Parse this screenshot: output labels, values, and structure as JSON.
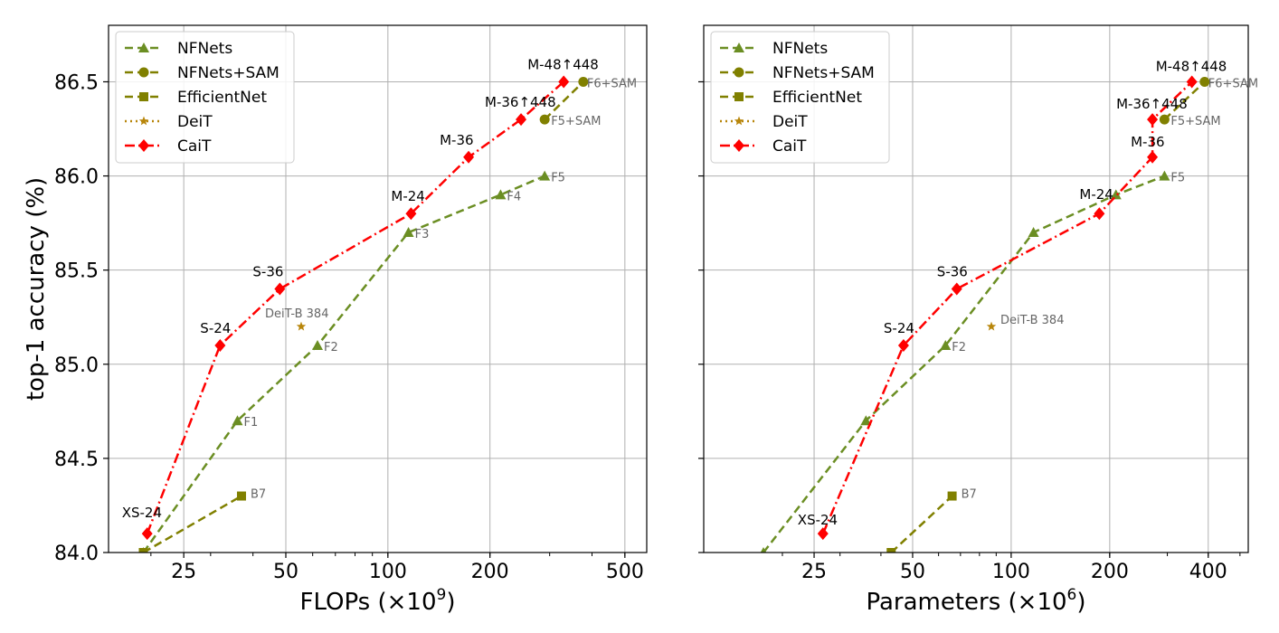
{
  "chart_data": [
    {
      "type": "line",
      "xscale": "log",
      "xlim": [
        15,
        580
      ],
      "ylim": [
        84.0,
        86.8
      ],
      "xlabel": "FLOPs (×10",
      "xlabel_sup": "9",
      "xlabel_tail": ")",
      "ylabel": "top-1 accuracy (%)",
      "xticks": [
        {
          "value": 25,
          "label": "25"
        },
        {
          "value": 50,
          "label": "50"
        },
        {
          "value": 100,
          "label": "100"
        },
        {
          "value": 200,
          "label": "200"
        },
        {
          "value": 500,
          "label": "500"
        }
      ],
      "yticks": [
        {
          "value": 84.0,
          "label": "84.0"
        },
        {
          "value": 84.5,
          "label": "84.5"
        },
        {
          "value": 85.0,
          "label": "85.0"
        },
        {
          "value": 85.5,
          "label": "85.5"
        },
        {
          "value": 86.0,
          "label": "86.0"
        },
        {
          "value": 86.5,
          "label": "86.5"
        }
      ],
      "grid": true,
      "legend_position": "top-left",
      "series": [
        {
          "name": "NFNets",
          "color": "#6b8e23",
          "linestyle": "dashed",
          "marker": "triangle",
          "points": [
            {
              "x": 19,
              "y": 84.0,
              "label": ""
            },
            {
              "x": 36,
              "y": 84.7,
              "label": "F1"
            },
            {
              "x": 62,
              "y": 85.1,
              "label": "F2"
            },
            {
              "x": 115,
              "y": 85.7,
              "label": "F3"
            },
            {
              "x": 215,
              "y": 85.9,
              "label": "F4"
            },
            {
              "x": 290,
              "y": 86.0,
              "label": "F5"
            }
          ]
        },
        {
          "name": "NFNets+SAM",
          "color": "#808000",
          "linestyle": "dashed",
          "marker": "circle",
          "points": [
            {
              "x": 290,
              "y": 86.3,
              "label": "F5+SAM"
            },
            {
              "x": 377,
              "y": 86.5,
              "label": "F6+SAM"
            }
          ]
        },
        {
          "name": "EfficientNet",
          "color": "#808000",
          "linestyle": "dashed",
          "marker": "square",
          "points": [
            {
              "x": 19,
              "y": 84.0,
              "label": ""
            },
            {
              "x": 37,
              "y": 84.3,
              "label": "B7"
            }
          ]
        },
        {
          "name": "DeiT",
          "color": "#b8860b",
          "linestyle": "dotted",
          "marker": "star",
          "points": [
            {
              "x": 55.5,
              "y": 85.2,
              "label": "DeiT-B 384"
            }
          ]
        },
        {
          "name": "CaiT",
          "color": "#ff0000",
          "linestyle": "dashdot",
          "marker": "diamond",
          "points": [
            {
              "x": 19.5,
              "y": 84.1,
              "label": "XS-24"
            },
            {
              "x": 32,
              "y": 85.1,
              "label": "S-24"
            },
            {
              "x": 48,
              "y": 85.4,
              "label": "S-36"
            },
            {
              "x": 117,
              "y": 85.8,
              "label": "M-24"
            },
            {
              "x": 173,
              "y": 86.1,
              "label": "M-36"
            },
            {
              "x": 247,
              "y": 86.3,
              "label": "M-36↑448"
            },
            {
              "x": 330,
              "y": 86.5,
              "label": "M-48↑448"
            }
          ]
        }
      ]
    },
    {
      "type": "line",
      "xscale": "log",
      "xlim": [
        11.5,
        530
      ],
      "ylim": [
        84.0,
        86.8
      ],
      "xlabel": "Parameters (×10",
      "xlabel_sup": "6",
      "xlabel_tail": ")",
      "ylabel": "",
      "xticks": [
        {
          "value": 25,
          "label": "25"
        },
        {
          "value": 50,
          "label": "50"
        },
        {
          "value": 100,
          "label": "100"
        },
        {
          "value": 200,
          "label": "200"
        },
        {
          "value": 400,
          "label": "400"
        }
      ],
      "yticks": [
        {
          "value": 84.0,
          "label": ""
        },
        {
          "value": 84.5,
          "label": ""
        },
        {
          "value": 85.0,
          "label": ""
        },
        {
          "value": 85.5,
          "label": ""
        },
        {
          "value": 86.0,
          "label": ""
        },
        {
          "value": 86.5,
          "label": ""
        }
      ],
      "grid": true,
      "legend_position": "top-left",
      "series": [
        {
          "name": "NFNets",
          "color": "#6b8e23",
          "linestyle": "dashed",
          "marker": "triangle",
          "points": [
            {
              "x": 17.5,
              "y": 84.0,
              "label": ""
            },
            {
              "x": 36,
              "y": 84.7,
              "label": ""
            },
            {
              "x": 63,
              "y": 85.1,
              "label": "F2"
            },
            {
              "x": 117,
              "y": 85.7,
              "label": ""
            },
            {
              "x": 209,
              "y": 85.9,
              "label": ""
            },
            {
              "x": 294,
              "y": 86.0,
              "label": "F5"
            }
          ]
        },
        {
          "name": "NFNets+SAM",
          "color": "#808000",
          "linestyle": "dashed",
          "marker": "circle",
          "points": [
            {
              "x": 294,
              "y": 86.3,
              "label": "F5+SAM"
            },
            {
              "x": 390,
              "y": 86.5,
              "label": "F6+SAM"
            }
          ]
        },
        {
          "name": "EfficientNet",
          "color": "#808000",
          "linestyle": "dashed",
          "marker": "square",
          "points": [
            {
              "x": 43,
              "y": 84.0,
              "label": ""
            },
            {
              "x": 66,
              "y": 84.3,
              "label": "B7"
            }
          ]
        },
        {
          "name": "DeiT",
          "color": "#b8860b",
          "linestyle": "dotted",
          "marker": "star",
          "points": [
            {
              "x": 87,
              "y": 85.2,
              "label": "DeiT-B 384"
            }
          ]
        },
        {
          "name": "CaiT",
          "color": "#ff0000",
          "linestyle": "dashdot",
          "marker": "diamond",
          "points": [
            {
              "x": 26.6,
              "y": 84.1,
              "label": "XS-24"
            },
            {
              "x": 46.9,
              "y": 85.1,
              "label": "S-24"
            },
            {
              "x": 68.2,
              "y": 85.4,
              "label": "S-36"
            },
            {
              "x": 185.9,
              "y": 85.8,
              "label": "M-24"
            },
            {
              "x": 270.1,
              "y": 86.1,
              "label": "M-36"
            },
            {
              "x": 270.1,
              "y": 86.3,
              "label": "M-36↑448"
            },
            {
              "x": 356.5,
              "y": 86.5,
              "label": "M-48↑448"
            }
          ]
        }
      ]
    }
  ]
}
